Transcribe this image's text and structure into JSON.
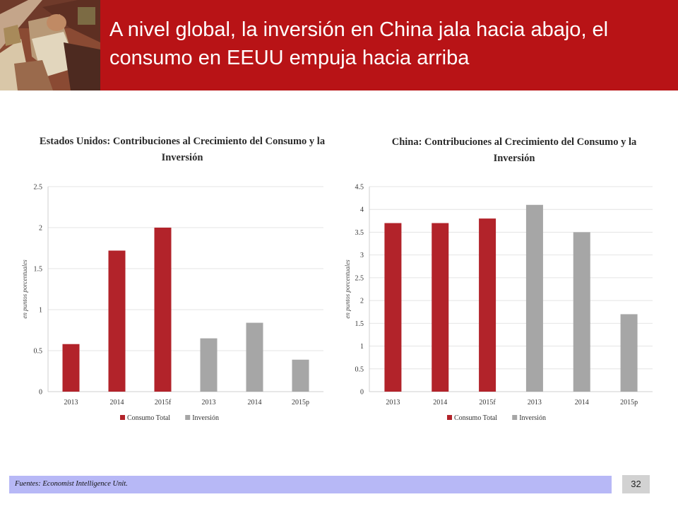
{
  "slide": {
    "title": "A nivel global, la inversión en China jala hacia abajo, el consumo en EEUU empuja hacia arriba",
    "source": "Fuentes: Economist Intelligence Unit.",
    "page_number": "32",
    "header_color": "#b81316",
    "footer_color": "#b7b8f6"
  },
  "colors": {
    "consumo": "#b2232a",
    "inversion": "#a6a6a6",
    "gridline": "#e4e4e4"
  },
  "chart_data": [
    {
      "type": "bar",
      "title": "Estados Unidos: Contribuciones al Crecimiento del Consumo y la Inversión",
      "ylabel": "en puntos porcentuales",
      "ylim": [
        0,
        2.5
      ],
      "yticks": [
        0,
        0.5,
        1,
        1.5,
        2,
        2.5
      ],
      "ytick_labels": [
        "0",
        "0.5",
        "1",
        "1.5",
        "2",
        "2.5"
      ],
      "categories": [
        "2013",
        "2014",
        "2015f",
        "2013",
        "2014",
        "2015p"
      ],
      "series": [
        {
          "name": "Consumo Total",
          "color": "#b2232a",
          "values": [
            0.58,
            1.72,
            2.0,
            null,
            null,
            null
          ]
        },
        {
          "name": "Inversión",
          "color": "#a6a6a6",
          "values": [
            null,
            null,
            null,
            0.65,
            0.84,
            0.39
          ]
        }
      ],
      "grid": true,
      "legend": "bottom"
    },
    {
      "type": "bar",
      "title": "China: Contribuciones al Crecimiento del Consumo y la Inversión",
      "ylabel": "en puntos porcentuales",
      "ylim": [
        0,
        4.5
      ],
      "yticks": [
        0,
        0.5,
        1,
        1.5,
        2,
        2.5,
        3,
        3.5,
        4,
        4.5
      ],
      "ytick_labels": [
        "0",
        "0.5",
        "1",
        "1.5",
        "2",
        "2.5",
        "3",
        "3.5",
        "4",
        "4.5"
      ],
      "categories": [
        "2013",
        "2014",
        "2015f",
        "2013",
        "2014",
        "2015p"
      ],
      "series": [
        {
          "name": "Consumo Total",
          "color": "#b2232a",
          "values": [
            3.7,
            3.7,
            3.8,
            null,
            null,
            null
          ]
        },
        {
          "name": "Inversión",
          "color": "#a6a6a6",
          "values": [
            null,
            null,
            null,
            4.1,
            3.5,
            1.7
          ]
        }
      ],
      "grid": true,
      "legend": "bottom"
    }
  ]
}
